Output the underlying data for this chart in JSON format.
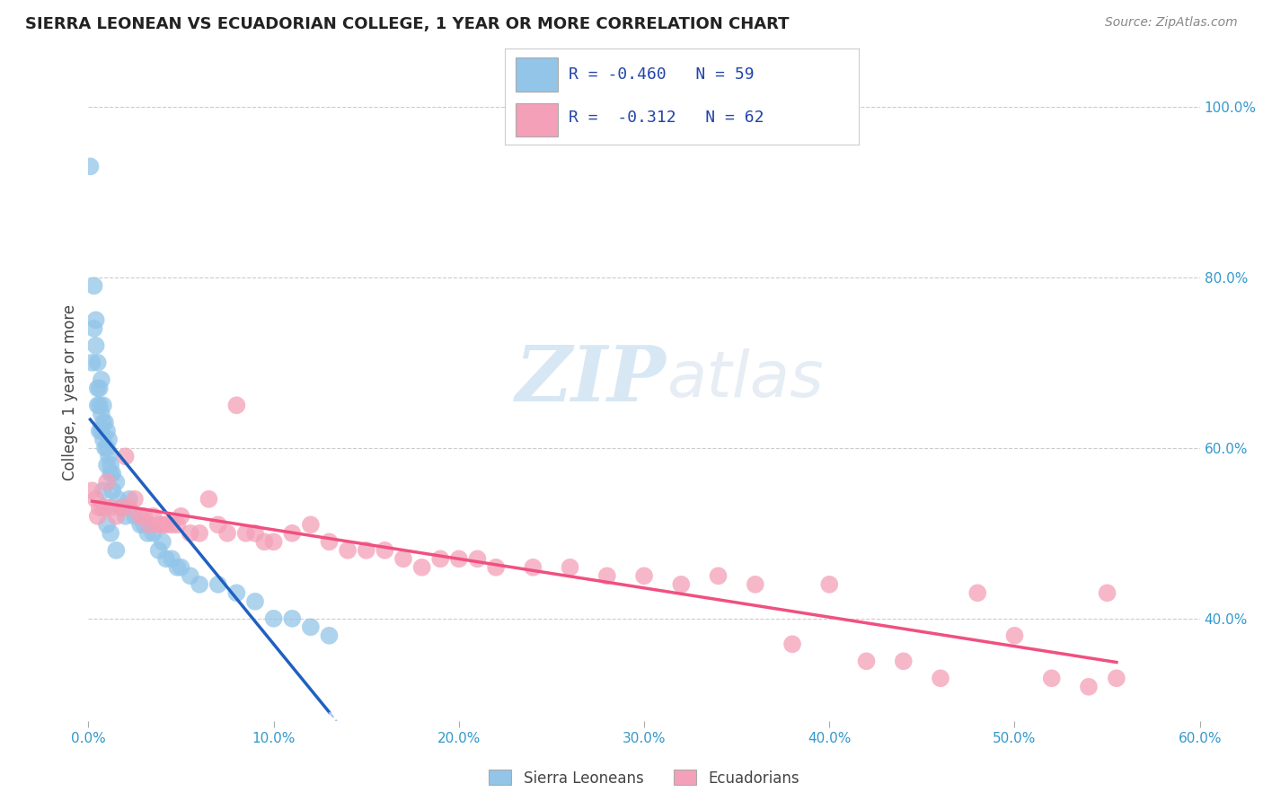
{
  "title": "SIERRA LEONEAN VS ECUADORIAN COLLEGE, 1 YEAR OR MORE CORRELATION CHART",
  "source": "Source: ZipAtlas.com",
  "ylabel": "College, 1 year or more",
  "xlim": [
    0.0,
    0.6
  ],
  "ylim": [
    0.28,
    1.05
  ],
  "xtick_vals": [
    0.0,
    0.1,
    0.2,
    0.3,
    0.4,
    0.5,
    0.6
  ],
  "xtick_labels": [
    "0.0%",
    "10.0%",
    "20.0%",
    "30.0%",
    "40.0%",
    "50.0%",
    "60.0%"
  ],
  "ytick_vals": [
    0.4,
    0.6,
    0.8,
    1.0
  ],
  "ytick_labels": [
    "40.0%",
    "60.0%",
    "80.0%",
    "100.0%"
  ],
  "sierra_color": "#92C5E8",
  "ecuador_color": "#F4A0B8",
  "sierra_line_color": "#2060C0",
  "ecuador_line_color": "#F05080",
  "sierra_dashed_color": "#A8C8E8",
  "R_sierra": -0.46,
  "N_sierra": 59,
  "R_ecuador": -0.312,
  "N_ecuador": 62,
  "watermark_zip": "ZIP",
  "watermark_atlas": "atlas",
  "background_color": "#FFFFFF",
  "grid_color": "#CCCCCC",
  "sierra_x": [
    0.001,
    0.002,
    0.003,
    0.003,
    0.004,
    0.004,
    0.005,
    0.005,
    0.005,
    0.006,
    0.006,
    0.006,
    0.007,
    0.007,
    0.007,
    0.008,
    0.008,
    0.008,
    0.009,
    0.009,
    0.01,
    0.01,
    0.01,
    0.011,
    0.011,
    0.012,
    0.012,
    0.013,
    0.013,
    0.015,
    0.016,
    0.018,
    0.02,
    0.022,
    0.025,
    0.028,
    0.03,
    0.032,
    0.035,
    0.038,
    0.04,
    0.042,
    0.045,
    0.048,
    0.05,
    0.055,
    0.06,
    0.07,
    0.08,
    0.09,
    0.1,
    0.11,
    0.12,
    0.13,
    0.008,
    0.009,
    0.01,
    0.012,
    0.015
  ],
  "sierra_y": [
    0.93,
    0.7,
    0.79,
    0.74,
    0.75,
    0.72,
    0.7,
    0.67,
    0.65,
    0.67,
    0.65,
    0.62,
    0.68,
    0.64,
    0.62,
    0.65,
    0.63,
    0.61,
    0.63,
    0.6,
    0.62,
    0.6,
    0.58,
    0.61,
    0.59,
    0.58,
    0.57,
    0.57,
    0.55,
    0.56,
    0.54,
    0.53,
    0.52,
    0.54,
    0.52,
    0.51,
    0.51,
    0.5,
    0.5,
    0.48,
    0.49,
    0.47,
    0.47,
    0.46,
    0.46,
    0.45,
    0.44,
    0.44,
    0.43,
    0.42,
    0.4,
    0.4,
    0.39,
    0.38,
    0.55,
    0.53,
    0.51,
    0.5,
    0.48
  ],
  "ecuador_x": [
    0.002,
    0.004,
    0.005,
    0.006,
    0.008,
    0.01,
    0.012,
    0.015,
    0.018,
    0.02,
    0.022,
    0.025,
    0.028,
    0.03,
    0.033,
    0.035,
    0.038,
    0.04,
    0.042,
    0.045,
    0.048,
    0.05,
    0.055,
    0.06,
    0.065,
    0.07,
    0.075,
    0.08,
    0.085,
    0.09,
    0.095,
    0.1,
    0.11,
    0.12,
    0.13,
    0.14,
    0.15,
    0.16,
    0.17,
    0.18,
    0.19,
    0.2,
    0.21,
    0.22,
    0.24,
    0.26,
    0.28,
    0.3,
    0.32,
    0.34,
    0.36,
    0.38,
    0.4,
    0.42,
    0.44,
    0.46,
    0.48,
    0.5,
    0.52,
    0.54,
    0.55,
    0.555
  ],
  "ecuador_y": [
    0.55,
    0.54,
    0.52,
    0.53,
    0.53,
    0.56,
    0.53,
    0.52,
    0.53,
    0.59,
    0.53,
    0.54,
    0.52,
    0.52,
    0.51,
    0.52,
    0.51,
    0.51,
    0.51,
    0.51,
    0.51,
    0.52,
    0.5,
    0.5,
    0.54,
    0.51,
    0.5,
    0.65,
    0.5,
    0.5,
    0.49,
    0.49,
    0.5,
    0.51,
    0.49,
    0.48,
    0.48,
    0.48,
    0.47,
    0.46,
    0.47,
    0.47,
    0.47,
    0.46,
    0.46,
    0.46,
    0.45,
    0.45,
    0.44,
    0.45,
    0.44,
    0.37,
    0.44,
    0.35,
    0.35,
    0.33,
    0.43,
    0.38,
    0.33,
    0.32,
    0.43,
    0.33
  ]
}
